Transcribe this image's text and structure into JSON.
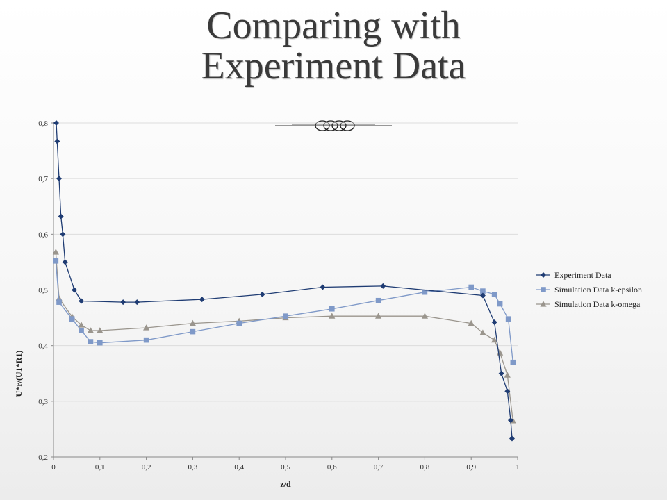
{
  "slide": {
    "title_line1": "Comparing with",
    "title_line2": "Experiment Data"
  },
  "colors": {
    "experiment": "#1f3c73",
    "k_epsilon": "#7f99c8",
    "k_omega": "#9a958d",
    "grid": "#dcdcdc",
    "title": "#3a3a3a"
  },
  "chart_data": {
    "type": "line",
    "xlabel": "z/d",
    "ylabel": "U*r/(U1*R1)",
    "xlim": [
      0,
      1
    ],
    "ylim": [
      0.2,
      0.8
    ],
    "xticks": [
      "0",
      "0,1",
      "0,2",
      "0,3",
      "0,4",
      "0,5",
      "0,6",
      "0,7",
      "0,8",
      "0,9",
      "1"
    ],
    "yticks": [
      "0,2",
      "0,3",
      "0,4",
      "0,5",
      "0,6",
      "0,7",
      "0,8"
    ],
    "grid": true,
    "legend_position": "right",
    "series": [
      {
        "name": "Experiment Data",
        "marker": "diamond",
        "color": "#1f3c73",
        "x": [
          0.006,
          0.008,
          0.012,
          0.016,
          0.02,
          0.025,
          0.045,
          0.06,
          0.15,
          0.18,
          0.32,
          0.45,
          0.58,
          0.71,
          0.925,
          0.95,
          0.965,
          0.978,
          0.985,
          0.988
        ],
        "y": [
          0.8,
          0.767,
          0.7,
          0.632,
          0.6,
          0.55,
          0.5,
          0.48,
          0.478,
          0.478,
          0.483,
          0.492,
          0.505,
          0.507,
          0.49,
          0.442,
          0.35,
          0.318,
          0.266,
          0.233
        ]
      },
      {
        "name": "Simulation Data k-epsilon",
        "marker": "square",
        "color": "#7f99c8",
        "x": [
          0.005,
          0.012,
          0.04,
          0.06,
          0.08,
          0.1,
          0.2,
          0.3,
          0.4,
          0.5,
          0.6,
          0.7,
          0.8,
          0.9,
          0.925,
          0.95,
          0.962,
          0.98,
          0.99
        ],
        "y": [
          0.552,
          0.478,
          0.448,
          0.427,
          0.407,
          0.405,
          0.41,
          0.425,
          0.44,
          0.453,
          0.466,
          0.481,
          0.496,
          0.505,
          0.498,
          0.492,
          0.475,
          0.448,
          0.37
        ]
      },
      {
        "name": "Simulation Data k-omega",
        "marker": "triangle",
        "color": "#9a958d",
        "x": [
          0.005,
          0.012,
          0.04,
          0.06,
          0.08,
          0.1,
          0.2,
          0.3,
          0.4,
          0.5,
          0.6,
          0.7,
          0.8,
          0.9,
          0.925,
          0.95,
          0.962,
          0.978,
          0.99
        ],
        "y": [
          0.568,
          0.485,
          0.452,
          0.437,
          0.427,
          0.427,
          0.432,
          0.44,
          0.444,
          0.45,
          0.453,
          0.453,
          0.453,
          0.44,
          0.423,
          0.41,
          0.387,
          0.347,
          0.265
        ]
      }
    ]
  }
}
